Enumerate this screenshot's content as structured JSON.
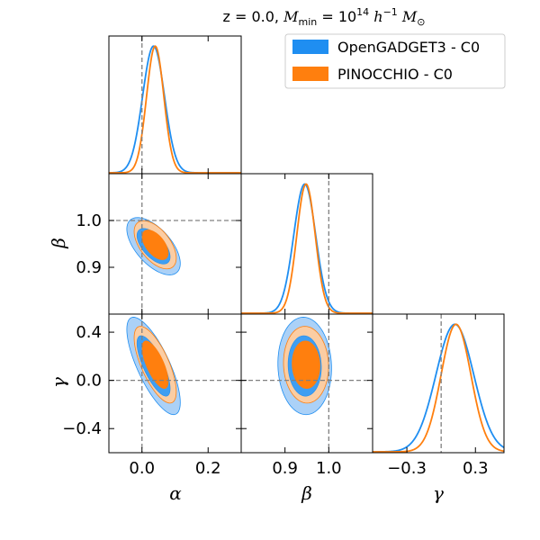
{
  "chart_data": {
    "type": "triangle-corner-plot",
    "title": "z = 0.0, M_min = 10^14 h^-1 M_sun",
    "title_parts": {
      "prefix": "z = 0.0, ",
      "m": "M",
      "m_sub": "min",
      "eq": " = 10",
      "exp": "14",
      "h": "h",
      "h_exp": "−1",
      "msun": "M",
      "msun_sub": "⊙"
    },
    "parameters": [
      {
        "symbol": "α",
        "truth": 0.0,
        "range": [
          -0.1,
          0.3
        ],
        "ticks": [
          0.0,
          0.2
        ],
        "tick_labels": [
          "0.0",
          "0.2"
        ]
      },
      {
        "symbol": "β",
        "truth": 1.0,
        "range": [
          0.8,
          1.1
        ],
        "ticks": [
          0.9,
          1.0
        ],
        "tick_labels": [
          "0.9",
          "1.0"
        ]
      },
      {
        "symbol": "γ",
        "truth": 0.0,
        "range": [
          -0.6,
          0.55
        ],
        "ticks": [
          -0.4,
          0.0,
          0.4
        ],
        "tick_labels": [
          "−0.4",
          "0.0",
          "0.4"
        ],
        "diag_ticks": [
          -0.3,
          0.3
        ],
        "diag_tick_labels": [
          "−0.3",
          "0.3"
        ]
      }
    ],
    "legend": [
      {
        "label": "OpenGADGET3 - C0",
        "color": "#1f8ef1"
      },
      {
        "label": "PINOCCHIO - C0",
        "color": "#ff7f0e"
      }
    ],
    "series": [
      {
        "name": "OpenGADGET3 - C0",
        "line_color": "#1f8ef1",
        "fill_outer": "#a6cff7",
        "fill_inner": "#3f9ef2",
        "mean": [
          0.035,
          0.945,
          0.12
        ],
        "sigma": [
          0.033,
          0.025,
          0.165
        ],
        "corr": {
          "alpha_beta": -0.6,
          "alpha_gamma": -0.75,
          "beta_gamma": -0.05
        }
      },
      {
        "name": "PINOCCHIO - C0",
        "line_color": "#ff7f0e",
        "fill_outer": "#ffcc9e",
        "fill_inner": "#ff7f0e",
        "mean": [
          0.04,
          0.948,
          0.13
        ],
        "sigma": [
          0.026,
          0.021,
          0.13
        ],
        "corr": {
          "alpha_beta": -0.55,
          "alpha_gamma": -0.7,
          "beta_gamma": -0.05
        }
      }
    ]
  }
}
